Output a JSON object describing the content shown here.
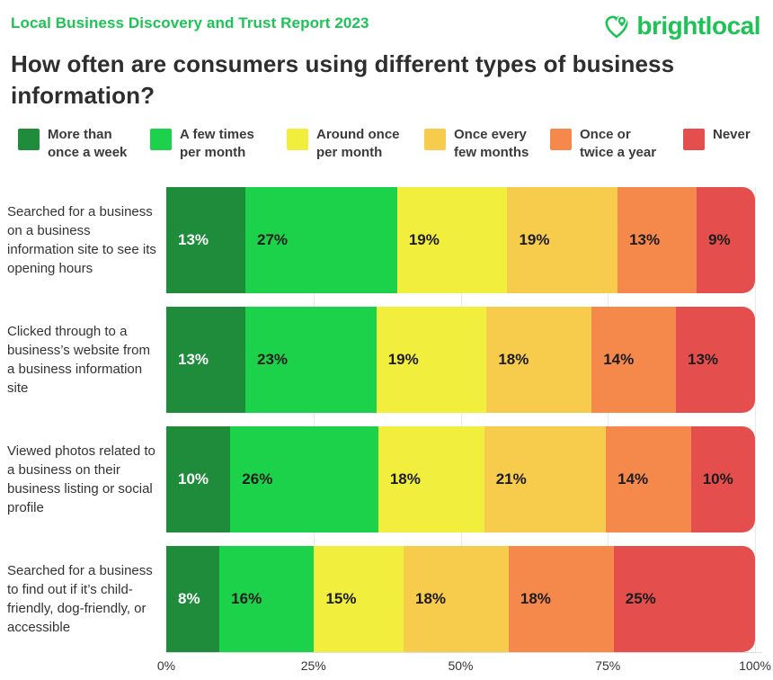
{
  "header": {
    "report_title": "Local Business Discovery and Trust Report 2023",
    "brand": "brightlocal"
  },
  "title": "How often are consumers using different types of business information?",
  "colors": {
    "brand_green": "#1DC355",
    "title_text": "#2E2E2E",
    "label_text": "#333333",
    "grid_line": "#E9E9E9",
    "axis_line": "#DFDFDF",
    "value_on_dark": "#FFFFFF",
    "value_on_light": "#1C1C1C"
  },
  "chart_data": {
    "type": "bar",
    "stacked": true,
    "orientation": "horizontal",
    "grid": true,
    "legend_position": "top",
    "xlim": [
      0,
      100
    ],
    "x_ticks": [
      "0%",
      "25%",
      "50%",
      "75%",
      "100%"
    ],
    "value_suffix": "%",
    "legend": [
      {
        "label": "More than once a week",
        "lines": [
          "More than",
          "once a week"
        ],
        "color": "#1E8C3A"
      },
      {
        "label": "A few times per month",
        "lines": [
          "A few times",
          "per month"
        ],
        "color": "#1BD24A"
      },
      {
        "label": "Around once per month",
        "lines": [
          "Around once",
          "per month"
        ],
        "color": "#F2EE3E"
      },
      {
        "label": "Once every few months",
        "lines": [
          "Once every",
          "few months"
        ],
        "color": "#F7CB4B"
      },
      {
        "label": "Once or twice a year",
        "lines": [
          "Once or",
          "twice a year"
        ],
        "color": "#F5894B"
      },
      {
        "label": "Never",
        "lines": [
          "Never"
        ],
        "color": "#E44F4D"
      }
    ],
    "categories": [
      "Searched for a business on a business information site to see its opening hours",
      "Clicked through to a business’s website from a business information site",
      "Viewed photos related to a business on their business listing or social profile",
      "Searched for a business to find out if it’s child-friendly, dog-friendly, or accessible"
    ],
    "series": [
      {
        "name": "More than once a week",
        "color": "#1E8C3A",
        "values": [
          13,
          13,
          10,
          8
        ]
      },
      {
        "name": "A few times per month",
        "color": "#1BD24A",
        "values": [
          27,
          23,
          26,
          16
        ]
      },
      {
        "name": "Around once per month",
        "color": "#F2EE3E",
        "values": [
          19,
          19,
          18,
          15
        ]
      },
      {
        "name": "Once every few months",
        "color": "#F7CB4B",
        "values": [
          19,
          18,
          21,
          18
        ]
      },
      {
        "name": "Once or twice a year",
        "color": "#F5894B",
        "values": [
          13,
          14,
          14,
          18
        ]
      },
      {
        "name": "Never",
        "color": "#E44F4D",
        "values": [
          9,
          13,
          10,
          25
        ]
      }
    ]
  }
}
